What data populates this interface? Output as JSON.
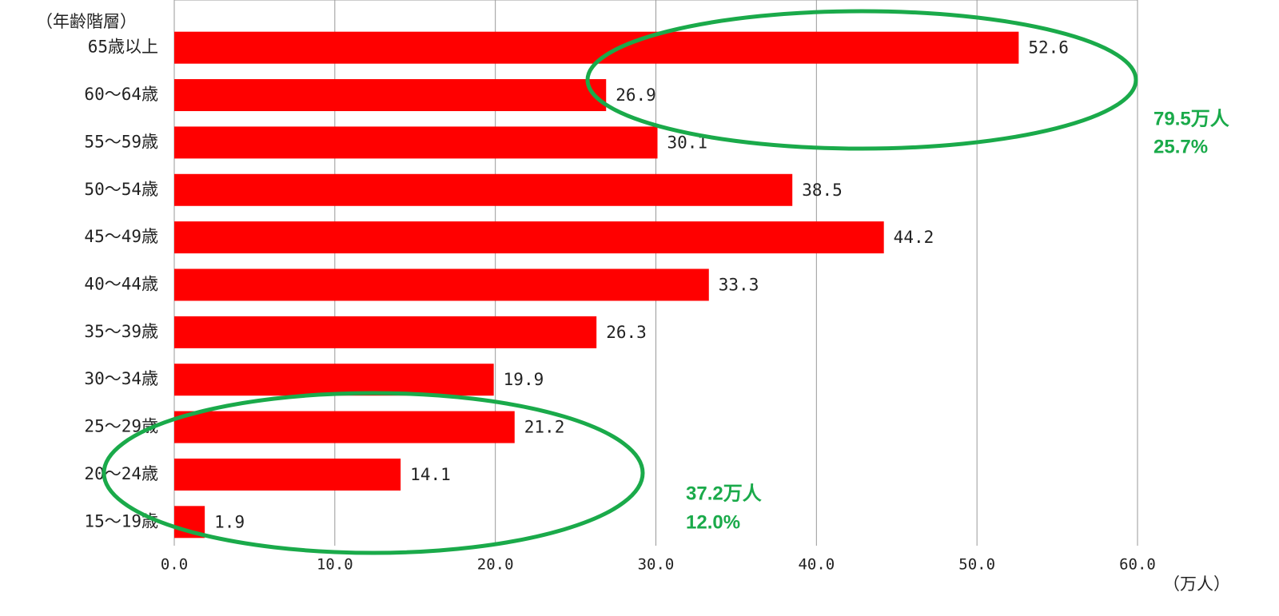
{
  "chart_data": {
    "type": "bar",
    "orientation": "horizontal",
    "y_label": "（年齢階層）",
    "x_label": "（万人）",
    "categories": [
      "65歳以上",
      "60～64歳",
      "55～59歳",
      "50～54歳",
      "45～49歳",
      "40～44歳",
      "35～39歳",
      "30～34歳",
      "25～29歳",
      "20～24歳",
      "15～19歳"
    ],
    "values": [
      52.6,
      26.9,
      30.1,
      38.5,
      44.2,
      33.3,
      26.3,
      19.9,
      21.2,
      14.1,
      1.9
    ],
    "color": "#ff0000",
    "xlim": [
      0,
      60
    ],
    "xticks": [
      {
        "value": 0,
        "label": "0.0"
      },
      {
        "value": 10,
        "label": "10.0"
      },
      {
        "value": 20,
        "label": "20.0"
      },
      {
        "value": 30,
        "label": "30.0"
      },
      {
        "value": 40,
        "label": "40.0"
      },
      {
        "value": 50,
        "label": "50.0"
      },
      {
        "value": 60,
        "label": "60.0"
      }
    ],
    "grid": true,
    "annotations": [
      "79.5万人",
      "25.7%",
      "37.2万人",
      "12.0%"
    ],
    "annotation_color": "#1aaa4a"
  }
}
